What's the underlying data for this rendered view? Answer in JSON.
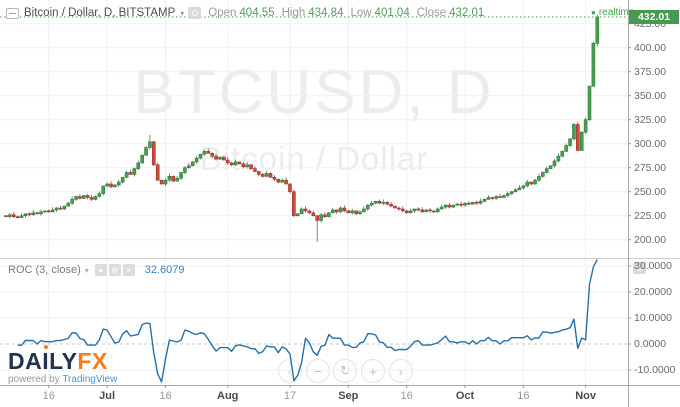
{
  "ui": {
    "legend": {
      "title": "Bitcoin / Dollar, D, BITSTAMP",
      "caret": "▾",
      "open_label": "Open",
      "open_value": "404.55",
      "high_label": "High",
      "high_value": "434.84",
      "low_label": "Low",
      "low_value": "401.04",
      "close_label": "Close",
      "close_value": "432.01"
    },
    "realtime": {
      "dot": "●",
      "label": "realtime"
    },
    "price_box": "432.01",
    "roc_header": {
      "label": "ROC (3, close)",
      "caret": "▾",
      "value": "32.6079",
      "icons": [
        {
          "name": "eye-icon",
          "glyph": "●"
        },
        {
          "name": "gear-icon",
          "glyph": "⚙"
        },
        {
          "name": "close-icon",
          "glyph": "×"
        }
      ]
    },
    "expand_icon_glyph": "⇅",
    "nav_buttons": [
      {
        "name": "scroll-left-button",
        "glyph": "‹"
      },
      {
        "name": "zoom-out-button",
        "glyph": "−"
      },
      {
        "name": "reset-view-button",
        "glyph": "↻"
      },
      {
        "name": "zoom-in-button",
        "glyph": "+"
      },
      {
        "name": "scroll-right-button",
        "glyph": "›"
      }
    ],
    "watermark": {
      "line1": "BTCUSD, D",
      "line2": "Bitcoin / Dollar"
    },
    "footer": {
      "logo_part1": "DA",
      "logo_part2": "I",
      "logo_part3": "LY",
      "logo_part4": "FX",
      "powered_by": "powered by",
      "vendor": "TradingView"
    }
  },
  "colors": {
    "up_fill": "#4a9e50",
    "up_stroke": "#2c7d3c",
    "down_fill": "#cc4b3d",
    "down_stroke": "#9e3428",
    "wick": "#666666",
    "grid": "#eef0f3",
    "zero_line": "#c6c6c6",
    "separator": "#cccccc",
    "axis_line": "#aaaaaa",
    "roc_line": "#2470a8",
    "realtime_green": "#43a047",
    "price_box_green": "#459950"
  },
  "chart_data": [
    {
      "type": "candlestick",
      "symbol": "BTCUSD",
      "interval": "D",
      "exchange": "BITSTAMP",
      "title": "Bitcoin / Dollar",
      "y_axis": {
        "ticks": [
          425,
          400,
          375,
          350,
          325,
          300,
          275,
          250,
          225,
          200
        ],
        "current": 432.01
      },
      "x_ticks": [
        {
          "i": 11,
          "label": "16"
        },
        {
          "i": 26,
          "label": "Jul",
          "bold": true
        },
        {
          "i": 41,
          "label": "16"
        },
        {
          "i": 57,
          "label": "Aug",
          "bold": true
        },
        {
          "i": 73,
          "label": "17"
        },
        {
          "i": 88,
          "label": "Sep",
          "bold": true
        },
        {
          "i": 103,
          "label": "16"
        },
        {
          "i": 118,
          "label": "Oct",
          "bold": true
        },
        {
          "i": 133,
          "label": "16"
        },
        {
          "i": 149,
          "label": "Nov",
          "bold": true
        }
      ],
      "first_open": 225,
      "closes": [
        224,
        226,
        224,
        223,
        225,
        227,
        226,
        228,
        227,
        229,
        230,
        229,
        231,
        233,
        232,
        235,
        238,
        242,
        245,
        243,
        246,
        244,
        242,
        245,
        248,
        256,
        258,
        255,
        257,
        260,
        265,
        270,
        268,
        274,
        280,
        288,
        296,
        302,
        278,
        262,
        258,
        262,
        266,
        261,
        264,
        270,
        275,
        277,
        281,
        285,
        289,
        292,
        290,
        287,
        284,
        286,
        283,
        280,
        278,
        281,
        279,
        276,
        278,
        274,
        271,
        268,
        266,
        269,
        265,
        263,
        260,
        262,
        258,
        250,
        225,
        227,
        232,
        230,
        228,
        225,
        220,
        226,
        224,
        228,
        231,
        229,
        233,
        230,
        228,
        230,
        227,
        229,
        232,
        236,
        238,
        240,
        238,
        239,
        237,
        235,
        233,
        232,
        230,
        228,
        230,
        232,
        231,
        229,
        231,
        230,
        229,
        232,
        234,
        236,
        234,
        236,
        237,
        236,
        238,
        237,
        239,
        238,
        240,
        242,
        244,
        243,
        245,
        244,
        246,
        248,
        250,
        252,
        254,
        256,
        260,
        258,
        262,
        266,
        270,
        274,
        277,
        282,
        287,
        292,
        298,
        305,
        320,
        293,
        312,
        325,
        360,
        404.55,
        432.01
      ],
      "wick_overrides": {
        "37": {
          "high": 309
        },
        "80": {
          "low": 198
        },
        "152": {
          "high": 434.84,
          "low": 401.04
        }
      },
      "last": {
        "open": 404.55,
        "high": 434.84,
        "low": 401.04,
        "close": 432.01
      }
    },
    {
      "type": "line",
      "name": "ROC (3, close)",
      "length": 3,
      "source": "close",
      "last_value": 32.6079,
      "derivation": "roc[i] = (close[i]-close[i-3])/close[i-3]*100",
      "y_axis": {
        "ticks": [
          30,
          20,
          10,
          0,
          -10
        ]
      }
    }
  ]
}
